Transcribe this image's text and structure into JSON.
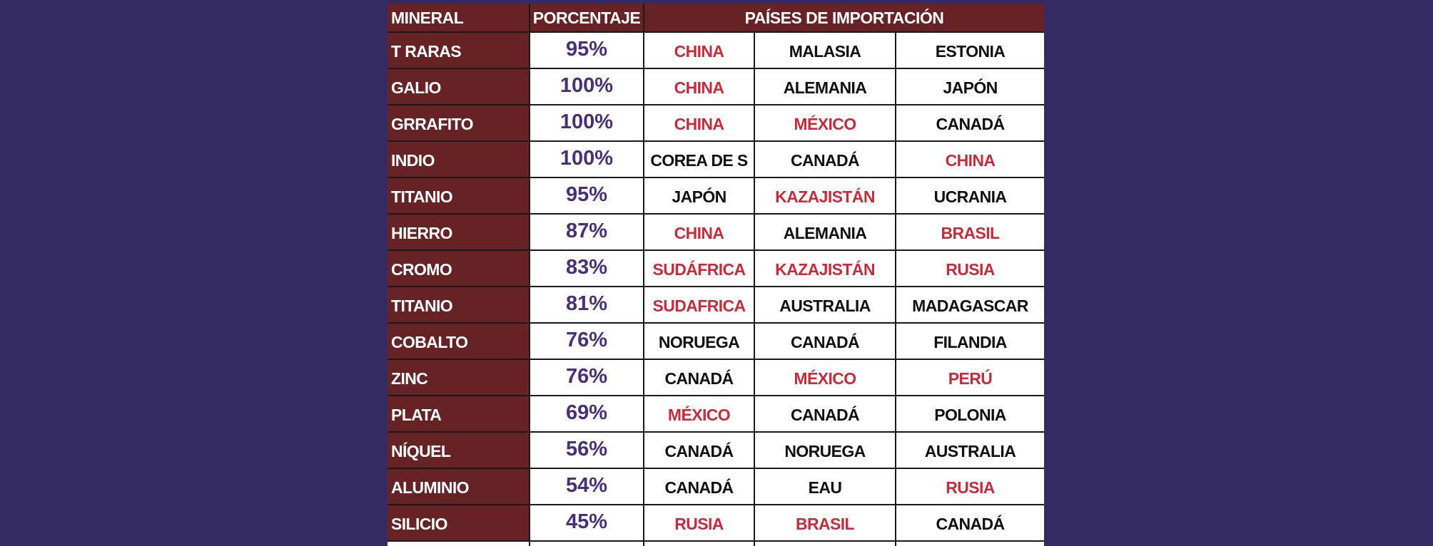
{
  "colors": {
    "background": "#352b64",
    "label_column": "#662224",
    "header_background": "#662224",
    "percent_text": "#4a2f78",
    "highlight_country": "#c62c3a",
    "normal_country": "#111111"
  },
  "header": {
    "mineral": "MINERAL",
    "percent": "PORCENTAJE",
    "countries": "PAÍSES DE IMPORTACIÓN"
  },
  "rows": [
    {
      "mineral": "T RARAS",
      "percent": "95%",
      "countries": [
        {
          "name": "CHINA",
          "highlight": true
        },
        {
          "name": "MALASIA",
          "highlight": false
        },
        {
          "name": "ESTONIA",
          "highlight": false
        }
      ]
    },
    {
      "mineral": "GALIO",
      "percent": "100%",
      "countries": [
        {
          "name": "CHINA",
          "highlight": true
        },
        {
          "name": "ALEMANIA",
          "highlight": false
        },
        {
          "name": "JAPÓN",
          "highlight": false
        }
      ]
    },
    {
      "mineral": "GRRAFITO",
      "percent": "100%",
      "countries": [
        {
          "name": "CHINA",
          "highlight": true
        },
        {
          "name": "MÉXICO",
          "highlight": true
        },
        {
          "name": "CANADÁ",
          "highlight": false
        }
      ]
    },
    {
      "mineral": "INDIO",
      "percent": "100%",
      "countries": [
        {
          "name": "COREA DE S",
          "highlight": false
        },
        {
          "name": "CANADÁ",
          "highlight": false
        },
        {
          "name": "CHINA",
          "highlight": true
        }
      ]
    },
    {
      "mineral": "TITANIO",
      "percent": "95%",
      "countries": [
        {
          "name": "JAPÓN",
          "highlight": false
        },
        {
          "name": "KAZAJISTÁN",
          "highlight": true
        },
        {
          "name": "UCRANIA",
          "highlight": false
        }
      ]
    },
    {
      "mineral": "HIERRO",
      "percent": "87%",
      "countries": [
        {
          "name": "CHINA",
          "highlight": true
        },
        {
          "name": "ALEMANIA",
          "highlight": false
        },
        {
          "name": "BRASIL",
          "highlight": true
        }
      ]
    },
    {
      "mineral": "CROMO",
      "percent": "83%",
      "countries": [
        {
          "name": "SUDÁFRICA",
          "highlight": true
        },
        {
          "name": "KAZAJISTÁN",
          "highlight": true
        },
        {
          "name": "RUSIA",
          "highlight": true
        }
      ]
    },
    {
      "mineral": "TITANIO",
      "percent": "81%",
      "countries": [
        {
          "name": "SUDAFRICA",
          "highlight": true
        },
        {
          "name": "AUSTRALIA",
          "highlight": false
        },
        {
          "name": "MADAGASCAR",
          "highlight": false
        }
      ]
    },
    {
      "mineral": "COBALTO",
      "percent": "76%",
      "countries": [
        {
          "name": "NORUEGA",
          "highlight": false
        },
        {
          "name": "CANADÁ",
          "highlight": false
        },
        {
          "name": "FILANDIA",
          "highlight": false
        }
      ]
    },
    {
      "mineral": "ZINC",
      "percent": "76%",
      "countries": [
        {
          "name": "CANADÁ",
          "highlight": false
        },
        {
          "name": "MÉXICO",
          "highlight": true
        },
        {
          "name": "PERÚ",
          "highlight": true
        }
      ]
    },
    {
      "mineral": "PLATA",
      "percent": "69%",
      "countries": [
        {
          "name": "MÉXICO",
          "highlight": true
        },
        {
          "name": "CANADÁ",
          "highlight": false
        },
        {
          "name": "POLONIA",
          "highlight": false
        }
      ]
    },
    {
      "mineral": "NÍQUEL",
      "percent": "56%",
      "countries": [
        {
          "name": "CANADÁ",
          "highlight": false
        },
        {
          "name": "NORUEGA",
          "highlight": false
        },
        {
          "name": "AUSTRALIA",
          "highlight": false
        }
      ]
    },
    {
      "mineral": "ALUMINIO",
      "percent": "54%",
      "countries": [
        {
          "name": "CANADÁ",
          "highlight": false
        },
        {
          "name": "EAU",
          "highlight": false
        },
        {
          "name": "RUSIA",
          "highlight": true
        }
      ]
    },
    {
      "mineral": "SILICIO",
      "percent": "45%",
      "countries": [
        {
          "name": "RUSIA",
          "highlight": true
        },
        {
          "name": "BRASIL",
          "highlight": true
        },
        {
          "name": "CANADÁ",
          "highlight": false
        }
      ]
    }
  ]
}
